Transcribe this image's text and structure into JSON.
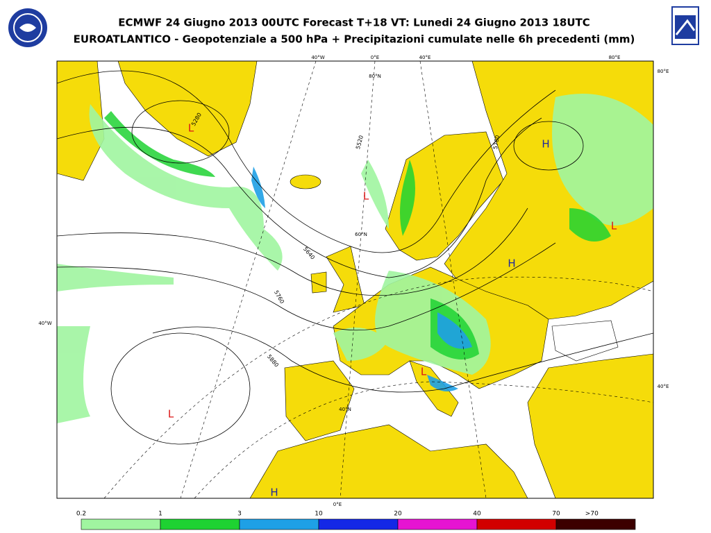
{
  "header": {
    "title_line1": "ECMWF 24 Giugno 2013 00UTC Forecast T+18 VT: Lunedi 24 Giugno 2013 18UTC",
    "title_line2": "EUROATLANTICO - Geopotenziale a 500 hPa + Precipitazioni cumulate nelle 6h precedenti (mm)"
  },
  "map": {
    "graticule_labels": [
      "40°W",
      "0°E",
      "40°E",
      "80°E",
      "80°E",
      "40°E",
      "40°W",
      "0°E",
      "80°N",
      "60°N",
      "40°N"
    ],
    "pressure_centers": [
      "L",
      "H",
      "L",
      "L",
      "H",
      "L",
      "L",
      "H"
    ],
    "pressure_colors": {
      "L": "#dc1414",
      "H": "#1e28a0"
    },
    "contour_labels": [
      5280,
      5520,
      5640,
      5760,
      5880,
      5760
    ]
  },
  "legend": {
    "labels": [
      "0.2",
      "1",
      "3",
      "10",
      "20",
      "40",
      "70",
      ">70"
    ],
    "colors": [
      "#a0f5a0",
      "#1ed232",
      "#1ea0e6",
      "#1428e6",
      "#e614d2",
      "#d20000",
      "#3c0000"
    ]
  }
}
